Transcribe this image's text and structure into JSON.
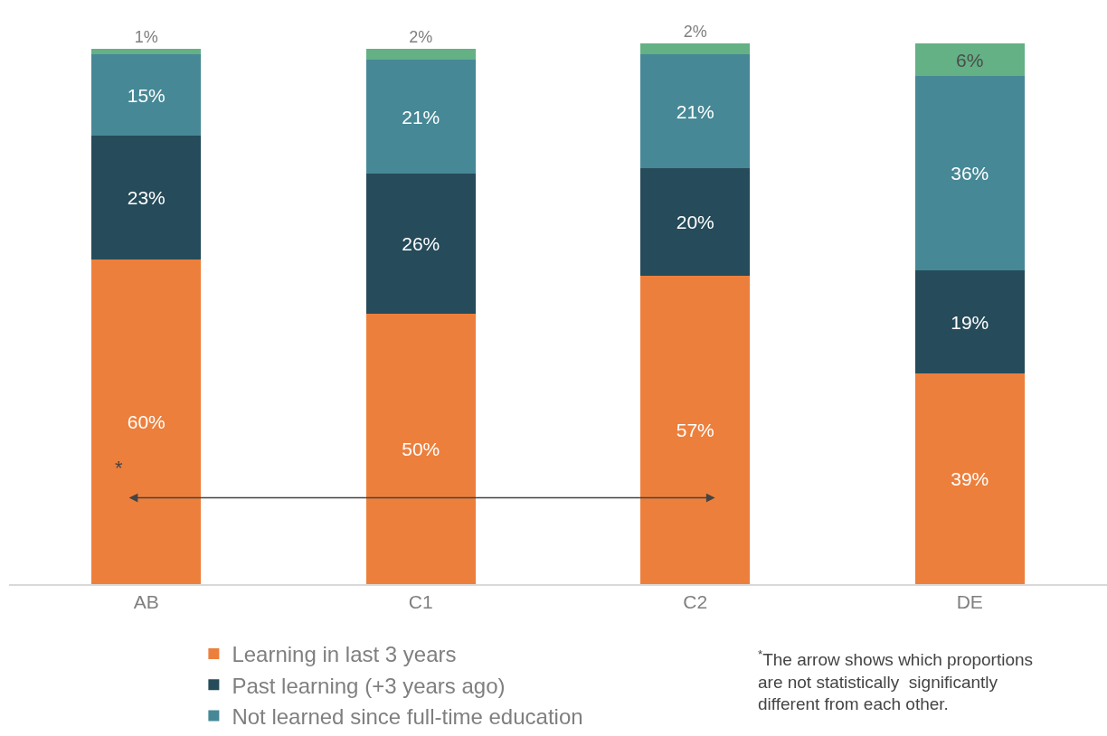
{
  "chart_data": {
    "type": "bar",
    "stacked": true,
    "legend": "bottom",
    "categories": [
      "AB",
      "C1",
      "C2",
      "DE"
    ],
    "series": [
      {
        "name": "Learning in last 3 years",
        "color": "#ed7f3c",
        "values": [
          60,
          50,
          57,
          39
        ],
        "value_labels": [
          "60%",
          "50%",
          "57%",
          "39%"
        ]
      },
      {
        "name": "Past learning (+3 years ago)",
        "color": "#264b5a",
        "values": [
          23,
          26,
          20,
          19
        ],
        "value_labels": [
          "23%",
          "26%",
          "20%",
          "19%"
        ]
      },
      {
        "name": "Not learned since full-time education",
        "color": "#468896",
        "values": [
          15,
          21,
          21,
          36
        ],
        "value_labels": [
          "15%",
          "21%",
          "21%",
          "36%"
        ]
      },
      {
        "color": "#63b185",
        "values": [
          1,
          2,
          2,
          6
        ],
        "value_labels": [
          "1%",
          "2%",
          "2%",
          "6%"
        ]
      }
    ],
    "annotations": [
      "*",
      "$^{*}$The arrow shows which proportions\nare not statistically  significantly\ndifferent from each other."
    ]
  }
}
